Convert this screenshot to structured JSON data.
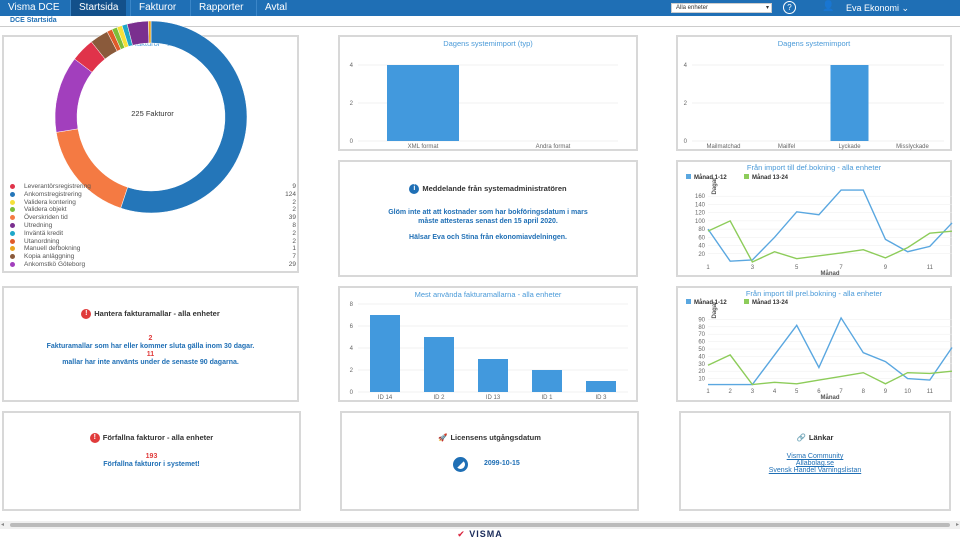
{
  "nav": {
    "brand": "Visma DCE",
    "tabs": [
      {
        "label": "Startsida",
        "active": true
      },
      {
        "label": "Fakturor",
        "active": false
      },
      {
        "label": "Rapporter",
        "active": false
      },
      {
        "label": "Avtal",
        "active": false
      }
    ],
    "unit_select": "Alla enheter",
    "help": "?",
    "user": "Eva Ekonomi"
  },
  "subbar": {
    "title": "DCE Startsida"
  },
  "donut": {
    "title": "Mina aktiva fakturor - alla enheter",
    "center": "225 Fakturor",
    "items": [
      {
        "label": "Leverantörsregistrering",
        "value": 9,
        "color": "#e0334a"
      },
      {
        "label": "Ankomstregistrering",
        "value": 124,
        "color": "#2476b9"
      },
      {
        "label": "Validera kontering",
        "value": 2,
        "color": "#f5e03a"
      },
      {
        "label": "Validera objekt",
        "value": 2,
        "color": "#7dbd3a"
      },
      {
        "label": "Överskriden tid",
        "value": 39,
        "color": "#f47a43"
      },
      {
        "label": "Utredning",
        "value": 8,
        "color": "#7a2f8f"
      },
      {
        "label": "Inväntä kredit",
        "value": 2,
        "color": "#1fa7c9"
      },
      {
        "label": "Utanordning",
        "value": 2,
        "color": "#e05b2a"
      },
      {
        "label": "Manuell defbokning",
        "value": 1,
        "color": "#e8a51f"
      },
      {
        "label": "Kopia anläggning",
        "value": 7,
        "color": "#8a5a3b"
      },
      {
        "label": "Ankomstkö Göteborg",
        "value": 29,
        "color": "#a23fbd"
      }
    ],
    "order": [
      1,
      4,
      10,
      0,
      9,
      7,
      3,
      2,
      6,
      5,
      8
    ]
  },
  "import_typ": {
    "title": "Dagens systemimport (typ)",
    "chart_data": {
      "type": "bar",
      "categories": [
        "XML format",
        "Andra format"
      ],
      "values": [
        4,
        0
      ],
      "ylim": [
        0,
        4
      ],
      "yticks": [
        0,
        2,
        4
      ]
    }
  },
  "import": {
    "title": "Dagens systemimport",
    "chart_data": {
      "type": "bar",
      "categories": [
        "Mailmatchad",
        "Mailfel",
        "Lyckade",
        "Misslyckade"
      ],
      "values": [
        0,
        0,
        4,
        0
      ],
      "ylim": [
        0,
        4
      ],
      "yticks": [
        0,
        2,
        4
      ]
    }
  },
  "message": {
    "title": "Meddelande från systemadministratören",
    "line1": "Glöm inte att att kostnader som har bokföringsdatum i mars",
    "line2": "måste attesteras senast den 15 april 2020.",
    "line3": "Hälsar Eva och Stina från ekonomiavdelningen."
  },
  "def_line": {
    "title": "Från import till def.bokning - alla enheter",
    "chart_data": {
      "type": "line",
      "xlabel": "Månad",
      "ylabel": "Dagar",
      "x": [
        1,
        2,
        3,
        4,
        5,
        6,
        7,
        8,
        9,
        10,
        11,
        12
      ],
      "xticks": [
        1,
        3,
        5,
        7,
        9,
        11
      ],
      "ylim": [
        0,
        180
      ],
      "yticks": [
        20,
        40,
        60,
        80,
        100,
        120,
        140,
        160
      ],
      "series": [
        {
          "name": "Månad 1-12",
          "color": "#5aa7e0",
          "values": [
            80,
            2,
            5,
            60,
            122,
            115,
            175,
            175,
            55,
            25,
            38,
            95
          ]
        },
        {
          "name": "Månad 13-24",
          "color": "#8dcc5a",
          "values": [
            75,
            100,
            0,
            25,
            8,
            15,
            22,
            30,
            10,
            35,
            70,
            75
          ]
        }
      ]
    }
  },
  "templates": {
    "title": "Hantera fakturamallar - alla enheter",
    "count1": "2",
    "line1": "Fakturamallar som har eller kommer sluta gälla inom 30 dagar.",
    "count2": "11",
    "line2": "mallar har inte använts under de senaste 90 dagarna."
  },
  "mallar": {
    "title": "Mest använda fakturamallarna - alla enheter",
    "chart_data": {
      "type": "bar",
      "categories": [
        "ID 14",
        "ID 2",
        "ID 13",
        "ID 1",
        "ID 3"
      ],
      "values": [
        7,
        5,
        3,
        2,
        1
      ],
      "ylim": [
        0,
        8
      ],
      "yticks": [
        0,
        2,
        4,
        6,
        8
      ]
    }
  },
  "prel_line": {
    "title": "Från import till prel.bokning - alla enheter",
    "chart_data": {
      "type": "line",
      "xlabel": "Månad",
      "ylabel": "Dagar",
      "x": [
        1,
        2,
        3,
        4,
        5,
        6,
        7,
        8,
        9,
        10,
        11,
        12
      ],
      "xticks": [
        1,
        2,
        3,
        4,
        5,
        6,
        7,
        8,
        9,
        10,
        11
      ],
      "ylim": [
        0,
        100
      ],
      "yticks": [
        10,
        20,
        30,
        40,
        50,
        60,
        70,
        80,
        90
      ],
      "series": [
        {
          "name": "Månad 1-12",
          "color": "#5aa7e0",
          "values": [
            2,
            2,
            2,
            42,
            82,
            25,
            92,
            45,
            33,
            10,
            8,
            52
          ]
        },
        {
          "name": "Månad 13-24",
          "color": "#8dcc5a",
          "values": [
            28,
            42,
            2,
            5,
            3,
            8,
            13,
            18,
            3,
            18,
            17,
            20
          ]
        }
      ]
    }
  },
  "overdue": {
    "title": "Förfallna fakturor - alla enheter",
    "count": "193",
    "line": "Förfallna fakturor i systemet!"
  },
  "license": {
    "title": "Licensens utgångsdatum",
    "date": "2099-10-15"
  },
  "links": {
    "title": "Länkar",
    "items": [
      "Visma Community",
      "Allabolag.se",
      "Svensk Handel Varningslistan"
    ]
  },
  "footer": {
    "logo": "VISMA"
  }
}
